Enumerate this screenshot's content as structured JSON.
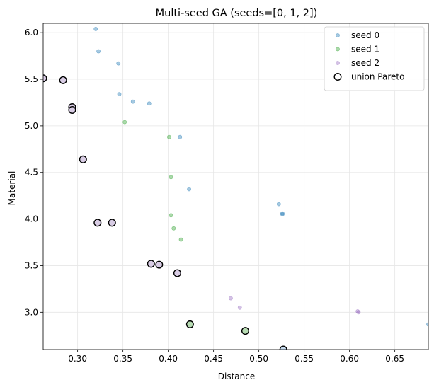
{
  "chart_data": {
    "type": "scatter",
    "title": "Multi-seed GA (seeds=[0, 1, 2])",
    "xlabel": "Distance",
    "ylabel": "Material",
    "xlim": [
      0.262,
      0.687
    ],
    "ylim": [
      2.6,
      6.1
    ],
    "x_ticks": [
      0.3,
      0.35,
      0.4,
      0.45,
      0.5,
      0.55,
      0.6,
      0.65
    ],
    "x_tick_labels": [
      "0.30",
      "0.35",
      "0.40",
      "0.45",
      "0.50",
      "0.55",
      "0.60",
      "0.65"
    ],
    "y_ticks": [
      3.0,
      3.5,
      4.0,
      4.5,
      5.0,
      5.5,
      6.0
    ],
    "y_tick_labels": [
      "3.0",
      "3.5",
      "4.0",
      "4.5",
      "5.0",
      "5.5",
      "6.0"
    ],
    "grid": true,
    "legend_position": "top-right",
    "series": [
      {
        "name": "seed 0",
        "color": "#1f77b4",
        "points": [
          [
            0.32,
            6.04
          ],
          [
            0.323,
            5.8
          ],
          [
            0.345,
            5.67
          ],
          [
            0.346,
            5.34
          ],
          [
            0.361,
            5.26
          ],
          [
            0.379,
            5.24
          ],
          [
            0.413,
            4.88
          ],
          [
            0.423,
            4.32
          ],
          [
            0.522,
            4.16
          ],
          [
            0.526,
            4.05
          ],
          [
            0.526,
            4.06
          ],
          [
            0.687,
            2.87
          ]
        ]
      },
      {
        "name": "seed 1",
        "color": "#2ca02c",
        "points": [
          [
            0.352,
            5.04
          ],
          [
            0.401,
            4.88
          ],
          [
            0.403,
            4.45
          ],
          [
            0.403,
            4.04
          ],
          [
            0.406,
            3.9
          ],
          [
            0.414,
            3.78
          ]
        ]
      },
      {
        "name": "seed 2",
        "color": "#9467bd",
        "points": [
          [
            0.469,
            3.15
          ],
          [
            0.479,
            3.05
          ],
          [
            0.609,
            3.01
          ],
          [
            0.61,
            3.0
          ]
        ]
      },
      {
        "name": "union Pareto",
        "edgecolor": "#000000",
        "points": [
          {
            "x": 0.262,
            "y": 5.51,
            "fill": "#d8cce4"
          },
          {
            "x": 0.284,
            "y": 5.49,
            "fill": "#d8cce4"
          },
          {
            "x": 0.294,
            "y": 5.2,
            "fill": "#d8cce4"
          },
          {
            "x": 0.294,
            "y": 5.17,
            "fill": "#d8cce4"
          },
          {
            "x": 0.306,
            "y": 4.64,
            "fill": "#d8cce4"
          },
          {
            "x": 0.322,
            "y": 3.96,
            "fill": "#d8cce4"
          },
          {
            "x": 0.338,
            "y": 3.96,
            "fill": "#d8cce4"
          },
          {
            "x": 0.381,
            "y": 3.52,
            "fill": "#d8cce4"
          },
          {
            "x": 0.39,
            "y": 3.51,
            "fill": "#d8cce4"
          },
          {
            "x": 0.41,
            "y": 3.42,
            "fill": "#d8cce4"
          },
          {
            "x": 0.424,
            "y": 2.87,
            "fill": "#b7dcb3"
          },
          {
            "x": 0.485,
            "y": 2.8,
            "fill": "#b7dcb3"
          },
          {
            "x": 0.527,
            "y": 2.6,
            "fill": "#c6dbef"
          }
        ]
      }
    ]
  }
}
